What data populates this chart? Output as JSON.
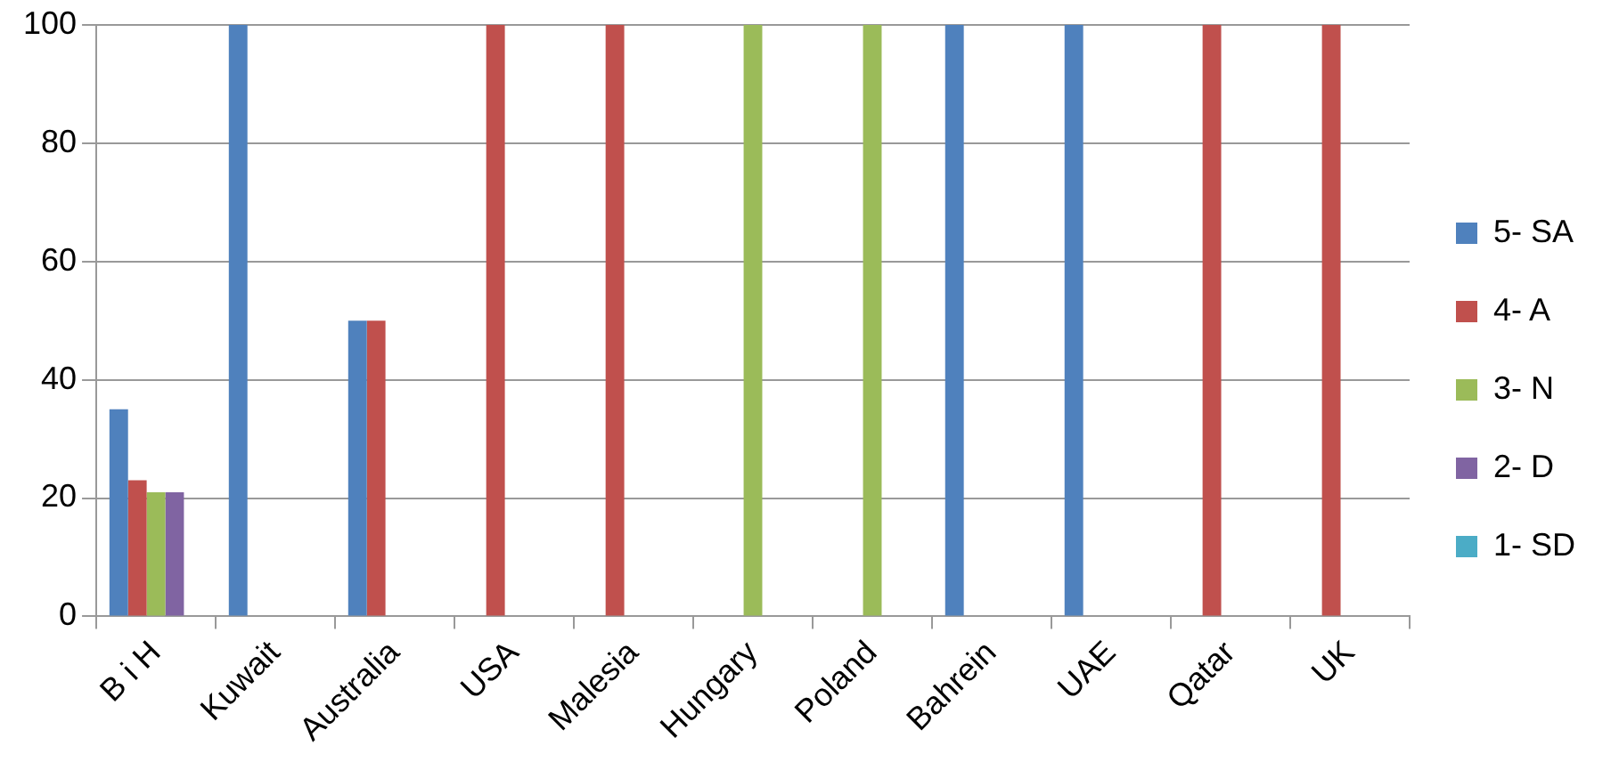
{
  "chart_data": {
    "type": "bar",
    "categories": [
      "B i H",
      "Kuwait",
      "Australia",
      "USA",
      "Malesia",
      "Hungary",
      "Poland",
      "Bahrein",
      "UAE",
      "Qatar",
      "UK"
    ],
    "series": [
      {
        "name": "5- SA",
        "color": "#4f81bd",
        "values": [
          35,
          100,
          50,
          0,
          0,
          0,
          0,
          100,
          100,
          0,
          0
        ]
      },
      {
        "name": "4- A",
        "color": "#c0504d",
        "values": [
          23,
          0,
          50,
          100,
          100,
          0,
          0,
          0,
          0,
          100,
          100
        ]
      },
      {
        "name": "3- N",
        "color": "#9bbb59",
        "values": [
          21,
          0,
          0,
          0,
          0,
          100,
          100,
          0,
          0,
          0,
          0
        ]
      },
      {
        "name": "2- D",
        "color": "#8064a2",
        "values": [
          21,
          0,
          0,
          0,
          0,
          0,
          0,
          0,
          0,
          0,
          0
        ]
      },
      {
        "name": "1- SD",
        "color": "#4bacc6",
        "values": [
          0,
          0,
          0,
          0,
          0,
          0,
          0,
          0,
          0,
          0,
          0
        ]
      }
    ],
    "ylim": [
      0,
      100
    ],
    "yticks": [
      0,
      20,
      40,
      60,
      80,
      100
    ],
    "grid": "y",
    "legend": "right"
  }
}
